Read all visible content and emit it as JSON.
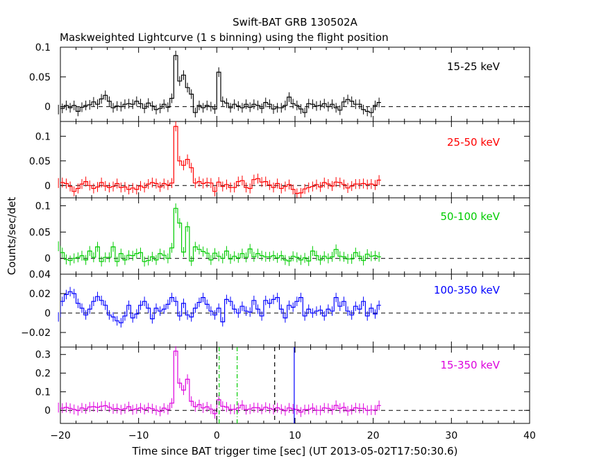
{
  "figure": {
    "title": "Swift-BAT GRB 130502A",
    "subtitle": "Maskweighted Lightcurve (1 s binning) using the flight position",
    "ylabel": "Counts/sec/det",
    "xlabel": "Time since BAT trigger time [sec] (UT 2013-05-02T17:50:30.6)"
  },
  "chart_data": [
    {
      "type": "line",
      "series": [
        {
          "name": "15-25 keV",
          "color": "#000000"
        }
      ],
      "ylim": [
        -0.025,
        0.1
      ],
      "yticks": [
        0,
        0.05,
        0.1
      ],
      "yticklabels": [
        "0",
        "0.05",
        "0.1"
      ],
      "values": [
        -0.005,
        -0.003,
        0.002,
        -0.002,
        0.002,
        -0.008,
        -0.001,
        0.002,
        0.003,
        0.008,
        0.004,
        0.013,
        0.019,
        0.009,
        -0.002,
        0.001,
        0.0,
        0.004,
        0.005,
        0.004,
        0.009,
        0.005,
        -0.003,
        0.006,
        0.001,
        -0.005,
        -0.003,
        0.004,
        -0.001,
        0.014,
        0.086,
        0.043,
        0.053,
        0.032,
        0.021,
        -0.01,
        0.002,
        -0.002,
        0.002,
        0.0,
        -0.004,
        0.058,
        0.009,
        0.006,
        -0.002,
        0.004,
        0.001,
        -0.002,
        0.004,
        -0.001,
        0.004,
        0.002,
        -0.003,
        0.007,
        0.004,
        -0.004,
        -0.002,
        -0.002,
        0.002,
        0.016,
        0.005,
        0.002,
        -0.004,
        -0.01,
        0.005,
        0.004,
        0.001,
        0.002,
        0.005,
        0.0,
        0.004,
        -0.002,
        -0.006,
        0.008,
        0.012,
        0.009,
        0.004,
        0.004,
        -0.005,
        -0.008,
        -0.01,
        0.002,
        0.007
      ]
    },
    {
      "type": "line",
      "series": [
        {
          "name": "25-50 keV",
          "color": "#ff0000"
        }
      ],
      "ylim": [
        -0.025,
        0.13
      ],
      "yticks": [
        0,
        0.05,
        0.1
      ],
      "yticklabels": [
        "0",
        "0.05",
        "0.1"
      ],
      "values": [
        0.005,
        0.006,
        0.004,
        -0.002,
        -0.012,
        -0.006,
        0.003,
        0.008,
        0.0,
        -0.006,
        -0.003,
        0.006,
        -0.001,
        -0.004,
        -0.002,
        0.004,
        -0.004,
        -0.003,
        -0.008,
        -0.005,
        -0.008,
        -0.001,
        -0.004,
        0.003,
        0.006,
        0.004,
        -0.003,
        0.004,
        0.001,
        0.005,
        0.12,
        0.05,
        0.041,
        0.053,
        0.036,
        0.005,
        0.008,
        0.004,
        0.006,
        0.005,
        -0.012,
        0.007,
        -0.002,
        0.002,
        -0.004,
        -0.004,
        0.008,
        0.01,
        -0.004,
        -0.006,
        0.012,
        0.014,
        0.007,
        0.008,
        0.001,
        -0.004,
        0.004,
        -0.006,
        -0.002,
        0.002,
        -0.008,
        -0.016,
        -0.015,
        -0.007,
        -0.004,
        -0.002,
        0.002,
        -0.003,
        0.006,
        0.003,
        -0.001,
        0.007,
        0.006,
        0.002,
        -0.005,
        -0.001,
        0.003,
        0.003,
        0.004,
        0.002,
        0.003,
        0.001,
        0.011
      ]
    },
    {
      "type": "line",
      "series": [
        {
          "name": "50-100 keV",
          "color": "#00cc00"
        }
      ],
      "ylim": [
        -0.03,
        0.115
      ],
      "yticks": [
        0,
        0.05,
        0.1
      ],
      "yticklabels": [
        "0",
        "0.05",
        "0.1"
      ],
      "values": [
        0.023,
        0.011,
        -0.002,
        -0.004,
        0.0,
        0.002,
        0.005,
        -0.003,
        0.014,
        0.002,
        0.022,
        -0.006,
        0.002,
        0.002,
        0.022,
        -0.006,
        0.009,
        -0.003,
        0.006,
        0.005,
        0.009,
        0.011,
        -0.006,
        -0.004,
        0.003,
        -0.003,
        0.009,
        0.006,
        0.0,
        0.02,
        0.095,
        0.067,
        0.012,
        0.06,
        -0.005,
        0.022,
        0.017,
        0.013,
        0.01,
        -0.003,
        0.01,
        0.004,
        0.0,
        0.014,
        -0.001,
        0.004,
        0.001,
        0.009,
        0.002,
        0.018,
        0.003,
        0.009,
        0.005,
        0.003,
        0.003,
        0.005,
        0.001,
        0.005,
        -0.003,
        -0.005,
        0.004,
        0.002,
        -0.003,
        0.001,
        -0.005,
        0.014,
        0.005,
        -0.003,
        0.004,
        0.0,
        0.003,
        0.017,
        0.004,
        0.003,
        -0.001,
        -0.001,
        0.011,
        0.004,
        -0.004,
        0.008,
        0.004,
        0.005,
        0.003
      ]
    },
    {
      "type": "line",
      "series": [
        {
          "name": "100-350 keV",
          "color": "#0000ff"
        }
      ],
      "ylim": [
        -0.035,
        0.04
      ],
      "yticks": [
        -0.02,
        0,
        0.02,
        0.04
      ],
      "yticklabels": [
        "−0.02",
        "0",
        "0.02",
        "0.04"
      ],
      "values": [
        -0.004,
        0.012,
        0.019,
        0.022,
        0.02,
        0.01,
        0.005,
        -0.002,
        0.004,
        0.012,
        0.017,
        0.013,
        0.008,
        -0.002,
        -0.004,
        -0.008,
        -0.01,
        -0.003,
        0.008,
        -0.005,
        -0.001,
        0.008,
        0.012,
        0.005,
        -0.006,
        0.005,
        0.002,
        0.004,
        0.009,
        0.016,
        0.012,
        -0.003,
        0.01,
        -0.002,
        -0.004,
        0.005,
        0.011,
        0.016,
        0.009,
        0.002,
        -0.002,
        0.005,
        -0.009,
        0.014,
        0.012,
        0.004,
        0.0,
        0.007,
        0.002,
        0.001,
        0.013,
        0.004,
        -0.003,
        0.013,
        0.01,
        0.014,
        0.016,
        0.004,
        -0.005,
        0.008,
        0.006,
        0.012,
        0.016,
        -0.003,
        0.004,
        0.0,
        0.002,
        0.003,
        -0.003,
        0.004,
        0.002,
        0.016,
        0.007,
        0.012,
        0.002,
        -0.002,
        0.007,
        0.004,
        0.012,
        -0.003,
        0.005,
        -0.001,
        0.008
      ]
    },
    {
      "type": "line",
      "series": [
        {
          "name": "15-350 keV",
          "color": "#dd00dd"
        }
      ],
      "ylim": [
        -0.07,
        0.34
      ],
      "yticks": [
        0,
        0.1,
        0.2,
        0.3
      ],
      "yticklabels": [
        "0",
        "0.1",
        "0.2",
        "0.3"
      ],
      "values": [
        0.015,
        0.012,
        0.016,
        0.011,
        0.005,
        -0.001,
        0.013,
        0.008,
        0.018,
        0.02,
        0.016,
        0.022,
        0.025,
        0.017,
        0.008,
        0.01,
        0.003,
        0.009,
        0.02,
        0.003,
        0.008,
        0.013,
        0.005,
        0.014,
        0.009,
        0.001,
        -0.005,
        0.012,
        0.004,
        0.039,
        0.318,
        0.146,
        0.109,
        0.167,
        0.049,
        0.02,
        0.031,
        0.013,
        0.019,
        0.007,
        -0.018,
        0.057,
        0.022,
        0.018,
        0.006,
        0.006,
        0.013,
        0.028,
        0.004,
        0.007,
        0.015,
        0.014,
        0.006,
        0.017,
        0.011,
        0.005,
        0.014,
        0.006,
        -0.002,
        0.013,
        0.008,
        0.004,
        -0.009,
        0.004,
        0.005,
        0.012,
        0.001,
        0.0,
        0.013,
        0.011,
        0.003,
        0.027,
        0.011,
        0.016,
        -0.003,
        0.004,
        0.014,
        0.011,
        0.011,
        0.0,
        0.002,
        0.002,
        0.026
      ],
      "markers": [
        {
          "x": 0.0,
          "color": "#000000",
          "style": "dashed"
        },
        {
          "x": 0.3,
          "color": "#00cc00",
          "style": "dashdot"
        },
        {
          "x": 2.6,
          "color": "#00cc00",
          "style": "dashdot"
        },
        {
          "x": 7.4,
          "color": "#000000",
          "style": "dashed"
        },
        {
          "x": 9.9,
          "color": "#0000ff",
          "style": "solid"
        }
      ]
    }
  ],
  "x": {
    "start": -20.5,
    "binwidth": 0.5,
    "lim": [
      -20,
      40
    ],
    "ticks": [
      -20,
      -10,
      0,
      10,
      20,
      30,
      40
    ],
    "ticklabels": [
      "−20",
      "−10",
      "0",
      "10",
      "20",
      "30",
      "40"
    ]
  }
}
